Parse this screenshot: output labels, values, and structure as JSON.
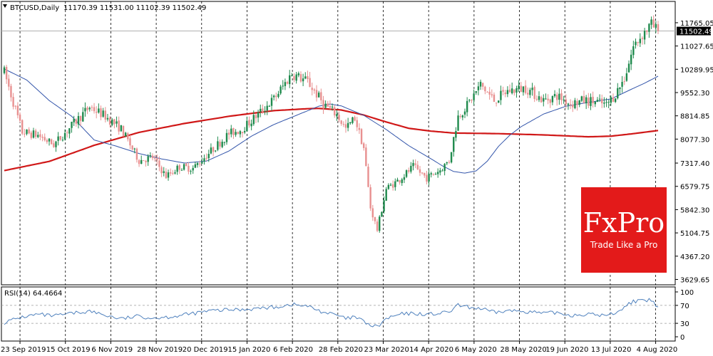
{
  "chart_data": {
    "type": "candlestick",
    "header": {
      "symbol": "BTCUSD,Daily",
      "ohlc": "11170.39 11531.00 11102.39 11502.49"
    },
    "last_price_label": "11502.49",
    "price_axis": {
      "ticks": [
        "11765.05",
        "11027.65",
        "10289.95",
        "9552.30",
        "8814.85",
        "8077.30",
        "7317.40",
        "6579.75",
        "5842.30",
        "5104.75",
        "4367.20",
        "3629.65"
      ],
      "ylim": [
        3550,
        12350
      ]
    },
    "date_axis": {
      "labels": [
        "23 Sep 2019",
        "15 Oct 2019",
        "6 Nov 2019",
        "28 Nov 2019",
        "20 Dec 2019",
        "15 Jan 2020",
        "6 Feb 2020",
        "28 Feb 2020",
        "23 Mar 2020",
        "14 Apr 2020",
        "6 May 2020",
        "28 May 2020",
        "19 Jun 2020",
        "13 Jul 2020",
        "4 Aug 2020"
      ]
    },
    "price_anchors": [
      [
        0,
        10200
      ],
      [
        8,
        8300
      ],
      [
        15,
        8200
      ],
      [
        22,
        7900
      ],
      [
        30,
        8500
      ],
      [
        38,
        9100
      ],
      [
        45,
        8800
      ],
      [
        52,
        8400
      ],
      [
        60,
        7400
      ],
      [
        66,
        7500
      ],
      [
        72,
        6900
      ],
      [
        78,
        7200
      ],
      [
        84,
        7150
      ],
      [
        92,
        7700
      ],
      [
        100,
        8250
      ],
      [
        106,
        8400
      ],
      [
        112,
        8800
      ],
      [
        120,
        9350
      ],
      [
        128,
        10150
      ],
      [
        135,
        9900
      ],
      [
        142,
        9200
      ],
      [
        148,
        8850
      ],
      [
        152,
        8400
      ],
      [
        156,
        8750
      ],
      [
        160,
        7800
      ],
      [
        163,
        5900
      ],
      [
        166,
        5200
      ],
      [
        170,
        6500
      ],
      [
        176,
        6800
      ],
      [
        182,
        7200
      ],
      [
        188,
        6850
      ],
      [
        194,
        7100
      ],
      [
        198,
        7400
      ],
      [
        202,
        8800
      ],
      [
        206,
        9150
      ],
      [
        212,
        9800
      ],
      [
        218,
        9300
      ],
      [
        224,
        9600
      ],
      [
        232,
        9700
      ],
      [
        240,
        9300
      ],
      [
        246,
        9450
      ],
      [
        252,
        9200
      ],
      [
        258,
        9300
      ],
      [
        264,
        9250
      ],
      [
        268,
        9150
      ],
      [
        272,
        9500
      ],
      [
        276,
        10000
      ],
      [
        280,
        11000
      ],
      [
        284,
        11400
      ],
      [
        288,
        11700
      ],
      [
        291,
        11480
      ]
    ],
    "ma50": [
      [
        0,
        10300
      ],
      [
        10,
        9950
      ],
      [
        20,
        9300
      ],
      [
        30,
        8800
      ],
      [
        40,
        8050
      ],
      [
        50,
        7850
      ],
      [
        60,
        7620
      ],
      [
        70,
        7450
      ],
      [
        80,
        7320
      ],
      [
        90,
        7380
      ],
      [
        100,
        7700
      ],
      [
        110,
        8170
      ],
      [
        120,
        8540
      ],
      [
        130,
        8830
      ],
      [
        140,
        9120
      ],
      [
        145,
        9190
      ],
      [
        150,
        9130
      ],
      [
        160,
        8830
      ],
      [
        170,
        8380
      ],
      [
        180,
        7870
      ],
      [
        190,
        7450
      ],
      [
        195,
        7230
      ],
      [
        200,
        7050
      ],
      [
        205,
        7000
      ],
      [
        210,
        7070
      ],
      [
        215,
        7380
      ],
      [
        220,
        7850
      ],
      [
        225,
        8200
      ],
      [
        230,
        8470
      ],
      [
        240,
        8870
      ],
      [
        250,
        9120
      ],
      [
        260,
        9240
      ],
      [
        270,
        9350
      ],
      [
        278,
        9620
      ],
      [
        285,
        9850
      ],
      [
        291,
        10070
      ]
    ],
    "ma200": [
      [
        0,
        7080
      ],
      [
        20,
        7370
      ],
      [
        40,
        7880
      ],
      [
        60,
        8290
      ],
      [
        80,
        8570
      ],
      [
        100,
        8800
      ],
      [
        120,
        8980
      ],
      [
        135,
        9040
      ],
      [
        140,
        9050
      ],
      [
        150,
        9000
      ],
      [
        160,
        8840
      ],
      [
        170,
        8620
      ],
      [
        180,
        8420
      ],
      [
        190,
        8330
      ],
      [
        200,
        8270
      ],
      [
        220,
        8250
      ],
      [
        240,
        8210
      ],
      [
        260,
        8150
      ],
      [
        270,
        8170
      ],
      [
        280,
        8250
      ],
      [
        291,
        8350
      ]
    ],
    "rsi": {
      "label": "RSI(14) 64.4664",
      "ticks": [
        "100",
        "70",
        "30",
        "0"
      ],
      "levels": [
        70,
        30
      ],
      "anchors": [
        [
          0,
          32
        ],
        [
          8,
          44
        ],
        [
          15,
          50
        ],
        [
          22,
          46
        ],
        [
          30,
          52
        ],
        [
          38,
          57
        ],
        [
          45,
          48
        ],
        [
          52,
          40
        ],
        [
          60,
          46
        ],
        [
          66,
          42
        ],
        [
          72,
          44
        ],
        [
          78,
          47
        ],
        [
          84,
          52
        ],
        [
          92,
          58
        ],
        [
          100,
          60
        ],
        [
          106,
          61
        ],
        [
          112,
          63
        ],
        [
          120,
          66
        ],
        [
          128,
          72
        ],
        [
          135,
          68
        ],
        [
          142,
          55
        ],
        [
          148,
          48
        ],
        [
          152,
          40
        ],
        [
          156,
          44
        ],
        [
          160,
          34
        ],
        [
          163,
          25
        ],
        [
          166,
          22
        ],
        [
          170,
          40
        ],
        [
          176,
          50
        ],
        [
          182,
          52
        ],
        [
          188,
          50
        ],
        [
          194,
          52
        ],
        [
          198,
          55
        ],
        [
          202,
          70
        ],
        [
          206,
          66
        ],
        [
          212,
          63
        ],
        [
          218,
          54
        ],
        [
          224,
          58
        ],
        [
          232,
          57
        ],
        [
          240,
          52
        ],
        [
          246,
          54
        ],
        [
          252,
          48
        ],
        [
          258,
          50
        ],
        [
          264,
          49
        ],
        [
          268,
          47
        ],
        [
          272,
          54
        ],
        [
          276,
          66
        ],
        [
          280,
          80
        ],
        [
          284,
          79
        ],
        [
          288,
          82
        ],
        [
          291,
          64
        ]
      ]
    }
  },
  "branding": {
    "logo_name": "FxPro",
    "tagline": "Trade Like a Pro",
    "logo_color": "#e31a1a"
  },
  "colors": {
    "bull": "#1f8a4d",
    "bear": "#e89090",
    "ma50": "#3355aa",
    "ma200": "#d01818",
    "rsi_line": "#4f81bd"
  }
}
